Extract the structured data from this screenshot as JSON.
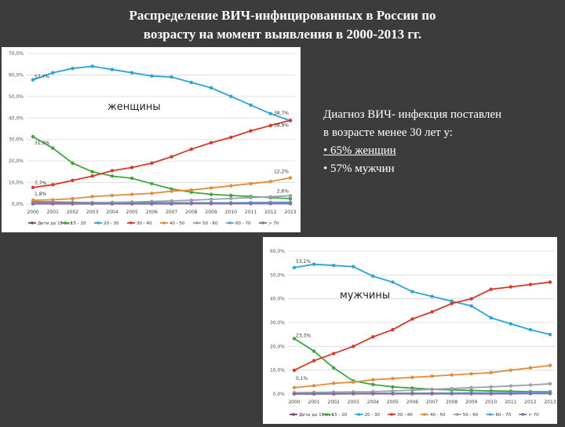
{
  "slide": {
    "title_line1": "Распределение ВИЧ-инфицированных в России по",
    "title_line2": "возрасту на момент выявления в 2000-2013 гг.",
    "note_line1": "Диагноз ВИЧ- инфекция поставлен",
    "note_line2": "в возрасте менее 30 лет у:",
    "note_line3": "• 65% женщин",
    "note_line4": "• 57% мужчин"
  },
  "colors": {
    "background": "#3c3c3c",
    "s0": "#7b3f7a",
    "s1": "#3ea53e",
    "s2": "#2aa3d8",
    "s3": "#d43a2a",
    "s4": "#e18c38",
    "s5": "#9aa0aa",
    "s6": "#5aa0d8",
    "s7": "#8b6b9a",
    "s8": "#c0c0c0"
  },
  "chart_data": [
    {
      "type": "line",
      "title": "женщины",
      "x": [
        "2000",
        "2001",
        "2002",
        "2003",
        "2004",
        "2005",
        "2006",
        "2007",
        "2008",
        "2009",
        "2010",
        "2011",
        "2012",
        "2013"
      ],
      "ylim": [
        0,
        70
      ],
      "yticks": [
        "0,0%",
        "10,0%",
        "20,0%",
        "30,0%",
        "40,0%",
        "50,0%",
        "60,0%",
        "70,0%"
      ],
      "legend": "bottom",
      "grid": true,
      "series": [
        {
          "name": "Дети до 15 лет",
          "values": [
            1.0,
            0.9,
            0.8,
            0.7,
            0.7,
            0.6,
            0.6,
            0.6,
            0.6,
            0.6,
            0.6,
            0.6,
            0.6,
            0.6
          ]
        },
        {
          "name": "15 - 20",
          "values": [
            31.3,
            26.0,
            19.0,
            15.0,
            13.0,
            12.0,
            9.5,
            7.0,
            5.5,
            4.5,
            4.0,
            3.5,
            3.0,
            2.5
          ]
        },
        {
          "name": "20 - 30",
          "values": [
            57.7,
            61.0,
            63.0,
            64.0,
            62.5,
            61.0,
            59.5,
            59.0,
            56.5,
            54.0,
            50.0,
            46.0,
            42.0,
            38.7
          ]
        },
        {
          "name": "30 - 40",
          "values": [
            7.7,
            9.0,
            11.0,
            13.0,
            15.5,
            17.0,
            19.0,
            22.0,
            25.5,
            28.5,
            31.0,
            34.0,
            36.5,
            38.9
          ]
        },
        {
          "name": "40 - 50",
          "values": [
            1.8,
            2.0,
            2.5,
            3.5,
            4.0,
            4.5,
            5.0,
            6.0,
            6.5,
            7.5,
            8.5,
            9.5,
            10.5,
            12.2
          ]
        },
        {
          "name": "50 - 60",
          "values": [
            0.5,
            0.5,
            0.6,
            0.7,
            0.8,
            1.0,
            1.2,
            1.5,
            1.8,
            2.2,
            2.6,
            3.0,
            3.4,
            3.9
          ]
        },
        {
          "name": "60 - 70",
          "values": [
            0.2,
            0.2,
            0.2,
            0.3,
            0.3,
            0.3,
            0.4,
            0.4,
            0.5,
            0.5,
            0.6,
            0.7,
            0.8,
            0.9
          ]
        },
        {
          "name": "> 70",
          "values": [
            0.1,
            0.1,
            0.1,
            0.1,
            0.1,
            0.1,
            0.1,
            0.1,
            0.2,
            0.2,
            0.2,
            0.2,
            0.2,
            0.2
          ]
        }
      ],
      "annotations": [
        "57,7%",
        "31,3%",
        "7,7%",
        "1,8%",
        "38,7%",
        "38,9%",
        "12,2%",
        "2,6%"
      ]
    },
    {
      "type": "line",
      "title": "мужчины",
      "x": [
        "2000",
        "2001",
        "2002",
        "2003",
        "2004",
        "2005",
        "2006",
        "2007",
        "2008",
        "2009",
        "2010",
        "2011",
        "2012",
        "2013"
      ],
      "ylim": [
        0,
        60
      ],
      "yticks": [
        "0,0%",
        "10,0%",
        "20,0%",
        "30,0%",
        "40,0%",
        "50,0%",
        "60,0%"
      ],
      "legend": "bottom",
      "grid": true,
      "series": [
        {
          "name": "Дети до 15 лет",
          "values": [
            0.3,
            0.3,
            0.3,
            0.3,
            0.3,
            0.3,
            0.3,
            0.3,
            0.3,
            0.3,
            0.3,
            0.3,
            0.3,
            0.3
          ]
        },
        {
          "name": "15 - 20",
          "values": [
            23.3,
            18.0,
            11.0,
            5.5,
            4.0,
            3.0,
            2.5,
            2.0,
            1.8,
            1.5,
            1.3,
            1.2,
            1.0,
            1.0
          ]
        },
        {
          "name": "20 - 30",
          "values": [
            53.1,
            54.5,
            54.0,
            53.5,
            49.5,
            47.0,
            43.0,
            41.0,
            39.0,
            37.0,
            32.0,
            29.5,
            27.0,
            25.0
          ]
        },
        {
          "name": "30 - 40",
          "values": [
            10.0,
            14.0,
            17.0,
            20.0,
            24.0,
            27.0,
            31.5,
            34.5,
            38.0,
            40.0,
            44.0,
            45.0,
            46.0,
            47.0
          ]
        },
        {
          "name": "40 - 50",
          "values": [
            2.7,
            3.5,
            4.5,
            5.0,
            6.0,
            6.5,
            7.0,
            7.5,
            8.0,
            8.5,
            9.0,
            10.0,
            11.0,
            12.0
          ]
        },
        {
          "name": "50 - 60",
          "values": [
            0.6,
            0.7,
            0.8,
            0.9,
            1.0,
            1.3,
            1.6,
            2.0,
            2.3,
            2.7,
            3.0,
            3.4,
            3.8,
            4.3
          ]
        },
        {
          "name": "60 - 70",
          "values": [
            0.1,
            0.1,
            0.2,
            0.2,
            0.2,
            0.3,
            0.3,
            0.4,
            0.4,
            0.5,
            0.5,
            0.6,
            0.7,
            0.8
          ]
        },
        {
          "name": "> 70",
          "values": [
            0.0,
            0.0,
            0.0,
            0.1,
            0.1,
            0.1,
            0.1,
            0.1,
            0.1,
            0.1,
            0.1,
            0.1,
            0.2,
            0.2
          ]
        }
      ],
      "annotations": [
        "53,1%",
        "23,3%",
        "0,1%"
      ]
    }
  ]
}
